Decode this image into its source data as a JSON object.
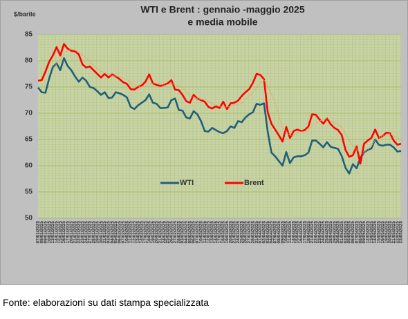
{
  "chart_data": {
    "type": "line",
    "title": "WTI e Brent :  gennaio -maggio  2025",
    "subtitle": "e media mobile",
    "y_label": "$/barile",
    "source": "Fonte: elaborazioni su dati stampa specializzata",
    "ylim": [
      50,
      85
    ],
    "yticks": [
      50,
      55,
      60,
      65,
      70,
      75,
      80,
      85
    ],
    "grid": true,
    "legend": "center",
    "categories": [
      "07/01/2025",
      "08/01/2025",
      "09/01/2025",
      "10/01/2025",
      "13/01/2025",
      "14/01/2025",
      "15/01/2025",
      "16/01/2025",
      "17/01/2025",
      "20/01/2025",
      "21/01/2025",
      "22/01/2025",
      "23/01/2025",
      "24/01/2025",
      "27/01/2025",
      "28/01/2025",
      "29/01/2025",
      "30/01/2025",
      "31/01/2025",
      "03/02/2025",
      "04/02/2025",
      "05/02/2025",
      "06/02/2025",
      "07/02/2025",
      "10/02/2025",
      "11/02/2025",
      "12/02/2025",
      "13/02/2025",
      "14/02/2025",
      "17/02/2025",
      "18/02/2025",
      "19/02/2025",
      "20/02/2025",
      "21/02/2025",
      "24/02/2025",
      "25/02/2025",
      "26/02/2025",
      "27/02/2025",
      "28/02/2025",
      "03/03/2025",
      "04/03/2025",
      "05/03/2025",
      "06/03/2025",
      "07/03/2025",
      "10/03/2025",
      "11/03/2025",
      "12/03/2025",
      "13/03/2025",
      "14/03/2025",
      "17/03/2025",
      "18/03/2025",
      "19/03/2025",
      "20/03/2025",
      "21/03/2025",
      "24/03/2025",
      "25/03/2025",
      "26/03/2025",
      "27/03/2025",
      "28/03/2025",
      "31/03/2025",
      "01/04/2025",
      "02/04/2025",
      "03/04/2025",
      "04/04/2025",
      "07/04/2025",
      "08/04/2025",
      "09/04/2025",
      "10/04/2025",
      "11/04/2025",
      "14/04/2025",
      "15/04/2025",
      "16/04/2025",
      "17/04/2025",
      "18/04/2025",
      "21/04/2025",
      "22/04/2025",
      "23/04/2025",
      "24/04/2025",
      "25/04/2025",
      "28/04/2025",
      "29/04/2025",
      "30/04/2025",
      "01/05/2025",
      "02/05/2025",
      "05/05/2025",
      "06/05/2025",
      "07/05/2025",
      "08/05/2025",
      "09/05/2025",
      "12/05/2025",
      "13/05/2025",
      "14/05/2025",
      "15/05/2025",
      "16/05/2025",
      "19/05/2025",
      "20/05/2025",
      "21/05/2025",
      "22/05/2025",
      "23/05/2025"
    ],
    "series": [
      {
        "name": "WTI",
        "color": "#1f5f7a",
        "style": "solid",
        "values": [
          74.9,
          74.0,
          73.9,
          76.6,
          78.8,
          79.5,
          78.2,
          80.5,
          79.0,
          78.2,
          77.0,
          76.0,
          76.8,
          76.2,
          75.0,
          74.8,
          74.2,
          73.5,
          74.0,
          72.9,
          73.0,
          74.0,
          73.8,
          73.5,
          73.0,
          71.2,
          70.8,
          71.5,
          72.0,
          72.5,
          73.6,
          72.0,
          71.8,
          71.0,
          71.0,
          71.1,
          72.5,
          72.8,
          70.6,
          70.5,
          69.2,
          69.0,
          70.4,
          69.8,
          68.5,
          66.6,
          66.5,
          67.2,
          66.8,
          66.4,
          66.2,
          66.6,
          67.5,
          67.2,
          68.5,
          68.3,
          69.2,
          69.8,
          70.2,
          71.8,
          71.6,
          71.9,
          66.5,
          62.5,
          61.8,
          60.9,
          60.0,
          62.6,
          60.5,
          61.6,
          61.8,
          61.8,
          62.0,
          62.5,
          64.8,
          64.8,
          64.2,
          63.5,
          64.5,
          63.6,
          63.4,
          63.2,
          61.8,
          59.6,
          58.5,
          60.3,
          59.5,
          61.5,
          62.5,
          63.0,
          63.3,
          65.0,
          64.0,
          63.8,
          64.0,
          64.0,
          63.5,
          62.7,
          62.8
        ]
      },
      {
        "name": "Brent",
        "color": "#ff0000",
        "style": "solid",
        "values": [
          76.2,
          76.3,
          77.9,
          79.8,
          81.0,
          82.6,
          81.0,
          83.2,
          82.3,
          81.9,
          81.8,
          81.2,
          79.3,
          78.7,
          78.9,
          78.2,
          77.5,
          76.8,
          77.5,
          76.8,
          77.4,
          77.0,
          76.5,
          75.9,
          75.6,
          74.6,
          74.5,
          75.0,
          75.3,
          76.0,
          77.4,
          75.7,
          75.4,
          75.2,
          75.4,
          75.7,
          76.3,
          74.5,
          74.4,
          73.5,
          72.3,
          72.0,
          73.5,
          72.8,
          72.5,
          72.2,
          71.2,
          70.9,
          71.3,
          71.0,
          72.2,
          70.8,
          71.9,
          72.0,
          72.4,
          73.3,
          74.0,
          74.6,
          75.8,
          77.5,
          77.3,
          76.5,
          70.2,
          68.0,
          66.9,
          65.8,
          64.6,
          67.4,
          65.3,
          66.6,
          66.9,
          66.6,
          66.8,
          67.5,
          69.8,
          69.7,
          68.8,
          68.0,
          69.0,
          67.9,
          67.2,
          66.8,
          65.8,
          63.0,
          61.7,
          62.0,
          63.7,
          60.4,
          64.2,
          64.8,
          65.3,
          66.9,
          65.3,
          65.6,
          66.3,
          66.2,
          64.8,
          64.0,
          64.2
        ]
      },
      {
        "color": "#f0a050",
        "style": "dotted",
        "values": [
          null,
          null,
          null,
          null,
          78.2,
          79.5,
          80.3,
          81.5,
          82.0,
          82.2,
          82.0,
          81.7,
          81.1,
          80.5,
          79.9,
          79.2,
          78.5,
          78.0,
          77.7,
          77.3,
          77.2,
          77.1,
          76.9,
          76.7,
          76.4,
          75.9,
          75.4,
          75.1,
          75.0,
          75.1,
          75.6,
          75.7,
          75.8,
          75.6,
          75.3,
          75.5,
          75.6,
          75.4,
          75.2,
          74.9,
          74.1,
          73.3,
          73.1,
          72.8,
          72.6,
          72.6,
          72.3,
          71.8,
          71.6,
          71.3,
          71.3,
          71.2,
          71.4,
          71.6,
          71.7,
          71.9,
          72.7,
          73.3,
          74.0,
          75.0,
          75.8,
          76.4,
          75.2,
          73.6,
          72.0,
          69.5,
          67.1,
          66.6,
          65.8,
          65.7,
          66.2,
          66.6,
          66.4,
          66.9,
          67.5,
          68.1,
          68.5,
          68.8,
          69.1,
          68.6,
          68.2,
          67.8,
          67.3,
          66.1,
          64.9,
          63.8,
          63.3,
          62.3,
          62.4,
          63.1,
          63.7,
          64.9,
          65.3,
          65.6,
          65.9,
          66.1,
          65.7,
          65.3,
          64.9
        ]
      }
    ]
  }
}
